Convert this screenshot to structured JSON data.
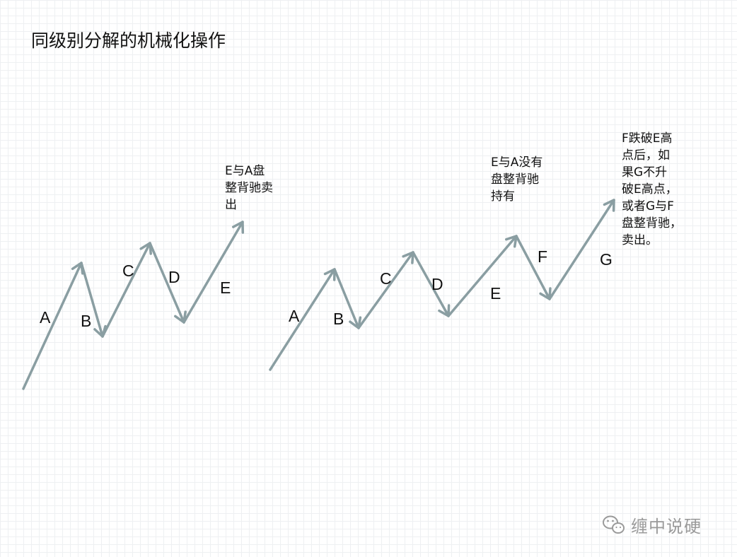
{
  "title": "同级别分解的机械化操作",
  "diagram_left": {
    "labels": [
      "A",
      "B",
      "C",
      "D",
      "E"
    ],
    "note_lines": [
      "E与A盘",
      "整背驰卖",
      "出"
    ]
  },
  "diagram_middle": {
    "labels": [
      "A",
      "B",
      "C",
      "D",
      "E"
    ],
    "note_lines": [
      "E与A没有",
      "盘整背驰",
      "持有"
    ]
  },
  "diagram_right": {
    "labels": [
      "F",
      "G"
    ],
    "note_lines": [
      "F跌破E高",
      "点后，如",
      "果G不升",
      "破E高点，",
      "或者G与F",
      "盘整背驰，",
      "卖出。"
    ]
  },
  "colors": {
    "arrow": "#8a9ea2",
    "grid": "#eef0f2"
  },
  "watermark": {
    "icon": "wechat-icon",
    "text": "缠中说硬"
  }
}
